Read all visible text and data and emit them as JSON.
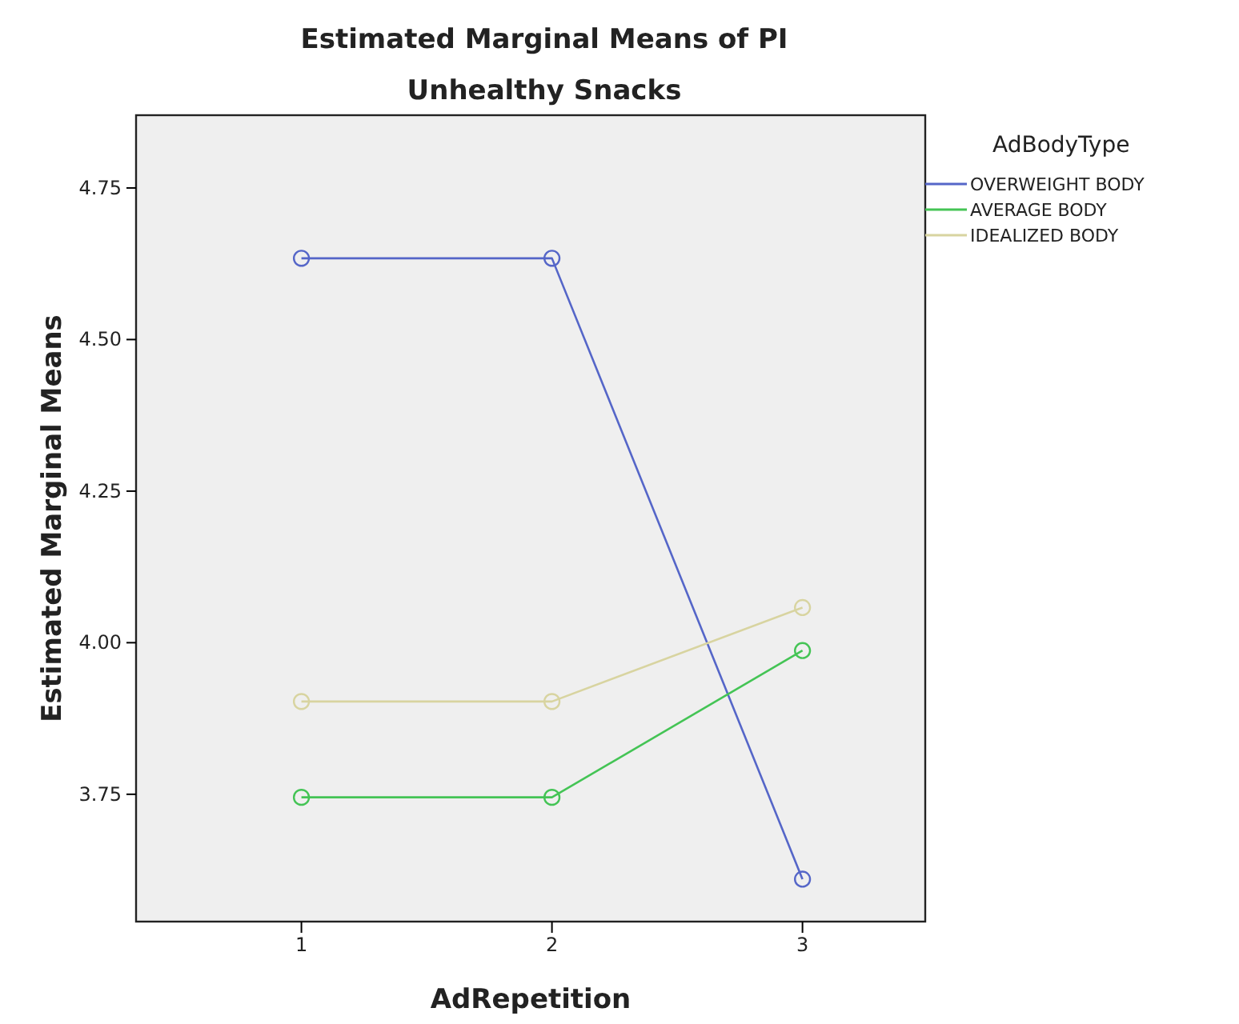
{
  "chart_data": {
    "type": "line",
    "title": "Estimated Marginal Means of PI",
    "subtitle": "Unhealthy Snacks",
    "xlabel": "AdRepetition",
    "ylabel": "Estimated Marginal Means",
    "legend_title": "AdBodyType",
    "x": [
      1,
      2,
      3
    ],
    "series": [
      {
        "name": "OVERWEIGHT BODY",
        "color": "#5566c8",
        "values": [
          4.634,
          4.634,
          3.61
        ]
      },
      {
        "name": "AVERAGE BODY",
        "color": "#44c455",
        "values": [
          3.745,
          3.745,
          3.987
        ]
      },
      {
        "name": "IDEALIZED BODY",
        "color": "#d8d4a0",
        "values": [
          3.903,
          3.903,
          4.058
        ]
      }
    ],
    "xlim": [
      0.34,
      3.49
    ],
    "xticks": [
      1,
      2,
      3
    ],
    "ylim": [
      3.54,
      4.87
    ],
    "yticks": [
      {
        "value": 3.75,
        "label": "3.75"
      },
      {
        "value": 4,
        "label": "4.00"
      },
      {
        "value": 4.25,
        "label": "4.25"
      },
      {
        "value": 4.5,
        "label": "4.50"
      },
      {
        "value": 4.75,
        "label": "4.75"
      }
    ],
    "legend": "right",
    "marker": "circle",
    "line_style": "solid",
    "grid": false
  }
}
